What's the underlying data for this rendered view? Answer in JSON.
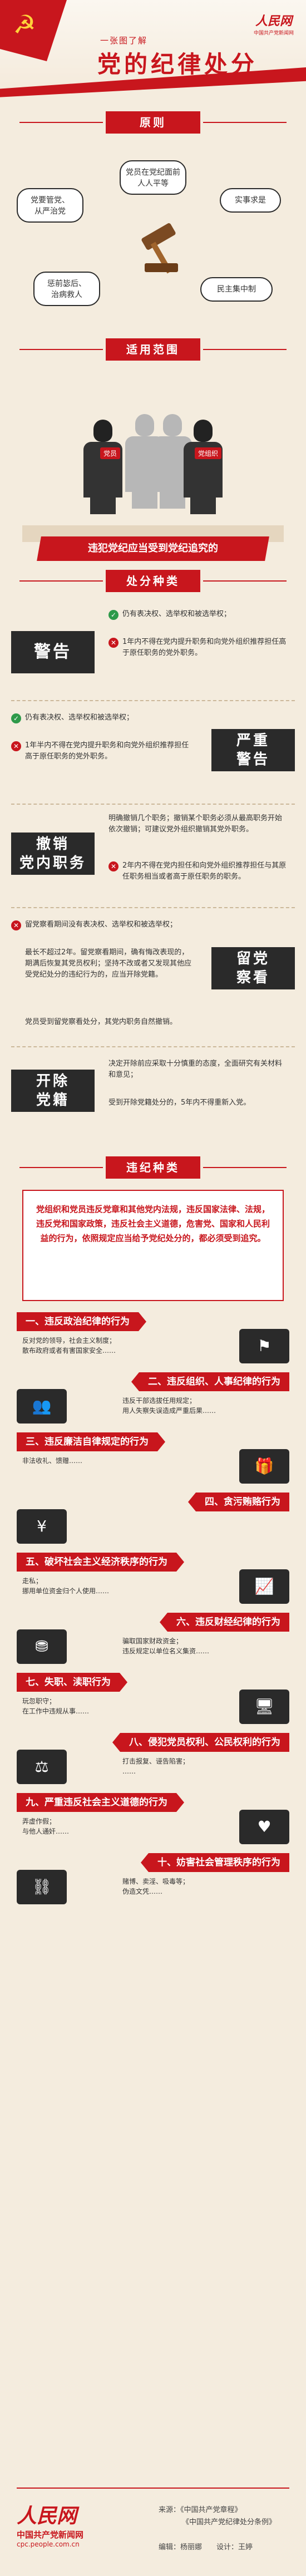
{
  "header": {
    "intro": "一张图了解",
    "title": "党的纪律处分",
    "logo_main": "人民网",
    "logo_sub": "中国共产党新闻网",
    "emblem_icon": "party-emblem-icon"
  },
  "principles": {
    "title": "原则",
    "items": [
      "党要管党、\n从严治党",
      "党员在党纪面前\n人人平等",
      "实事求是",
      "惩前毖后、\n治病救人",
      "民主集中制"
    ]
  },
  "scope": {
    "title": "适用范围",
    "tags": [
      "党员",
      "党组织"
    ],
    "bar": "违犯党纪应当受到党纪追究的"
  },
  "types": {
    "title": "处分种类",
    "list": [
      {
        "badge": "警告",
        "lines": [
          "仍有表决权、选举权和被选举权；",
          "1年内不得在党内提升职务和向党外组织推荐担任高于原任职务的党外职务。"
        ],
        "highlight": "1年内"
      },
      {
        "badge": "严重\n警告",
        "lines": [
          "仍有表决权、选举权和被选举权；",
          "1年半内不得在党内提升职务和向党外组织推荐担任高于原任职务的党外职务。"
        ],
        "highlight": "1年半内"
      },
      {
        "badge": "撤销\n党内职务",
        "lines": [
          "明确撤销几个职务；撤销某个职务必须从最高职务开始依次撤销；可建议党外组织撤销其党外职务。",
          "2年内不得在党内担任和向党外组织推荐担任与其原任职务相当或者高于原任职务的职务。"
        ],
        "highlight": "2年内"
      },
      {
        "badge": "留党\n察看",
        "lines": [
          "留党察看期间没有表决权、选举权和被选举权；",
          "最长不超过2年。留党察看期间，确有悔改表现的，期满后恢复其党员权利；坚持不改或者又发现其他应受党纪处分的违纪行为的，应当开除党籍。",
          "党员受到留党察看处分，其党内职务自然撤销。"
        ],
        "highlight": "最长不超过2年"
      },
      {
        "badge": "开除\n党籍",
        "lines": [
          "决定开除前应采取十分慎重的态度，全面研究有关材料和意见；",
          "受到开除党籍处分的，5年内不得重新入党。"
        ],
        "highlight": "5年内不得重新入党"
      }
    ]
  },
  "violations": {
    "title": "违纪种类",
    "intro": "党组织和党员违反党章和其他党内法规，违反国家法律、法规，违反党和国家政策，违反社会主义道德，危害党、国家和人民利益的行为，依照规定应当给予党纪处分的，都必须受到追究。",
    "items": [
      {
        "title": "一、违反政治纪律的行为",
        "desc": "反对党的领导，社会主义制度；\n散布政府或者有害国家安全……",
        "icon": "flag-icon",
        "side": "left"
      },
      {
        "title": "二、违反组织、人事纪律的行为",
        "desc": "违反干部选拔任用规定；\n用人失察失误造成严重后果……",
        "icon": "people-icon",
        "side": "right"
      },
      {
        "title": "三、违反廉洁自律规定的行为",
        "desc": "非法收礼、馈赠……",
        "icon": "gift-icon",
        "side": "left"
      },
      {
        "title": "四、贪污贿赂行为",
        "desc": "",
        "icon": "money-icon",
        "side": "right"
      },
      {
        "title": "五、破坏社会主义经济秩序的行为",
        "desc": "走私；\n挪用单位资金归个人使用……",
        "icon": "chart-icon",
        "side": "left"
      },
      {
        "title": "六、违反财经纪律的行为",
        "desc": "骗取国家财政资金；\n违反规定以单位名义集资……",
        "icon": "coins-icon",
        "side": "right"
      },
      {
        "title": "七、失职、渎职行为",
        "desc": "玩忽职守；\n在工作中违规从事……",
        "icon": "desk-icon",
        "side": "left"
      },
      {
        "title": "八、侵犯党员权利、公民权利的行为",
        "desc": "打击报复、诬告陷害；\n……",
        "icon": "scale-icon",
        "side": "right"
      },
      {
        "title": "九、严重违反社会主义道德的行为",
        "desc": "弄虚作假；\n与他人通奸……",
        "icon": "heart-icon",
        "side": "left"
      },
      {
        "title": "十、妨害社会管理秩序的行为",
        "desc": "赌博、卖淫、吸毒等；\n伪造文凭……",
        "icon": "handcuff-icon",
        "side": "right"
      }
    ]
  },
  "footer": {
    "logo_main": "人民网",
    "logo_sub": "中国共产党新闻网",
    "url": "cpc.people.com.cn",
    "source_label": "来源：",
    "sources": [
      "《中国共产党章程》",
      "《中国共产党纪律处分条例》"
    ],
    "credit": "编辑：杨丽娜　　设计：王婷"
  },
  "colors": {
    "primary": "#c8161d",
    "dark": "#2a2a2a",
    "background": "#f4ecde"
  }
}
